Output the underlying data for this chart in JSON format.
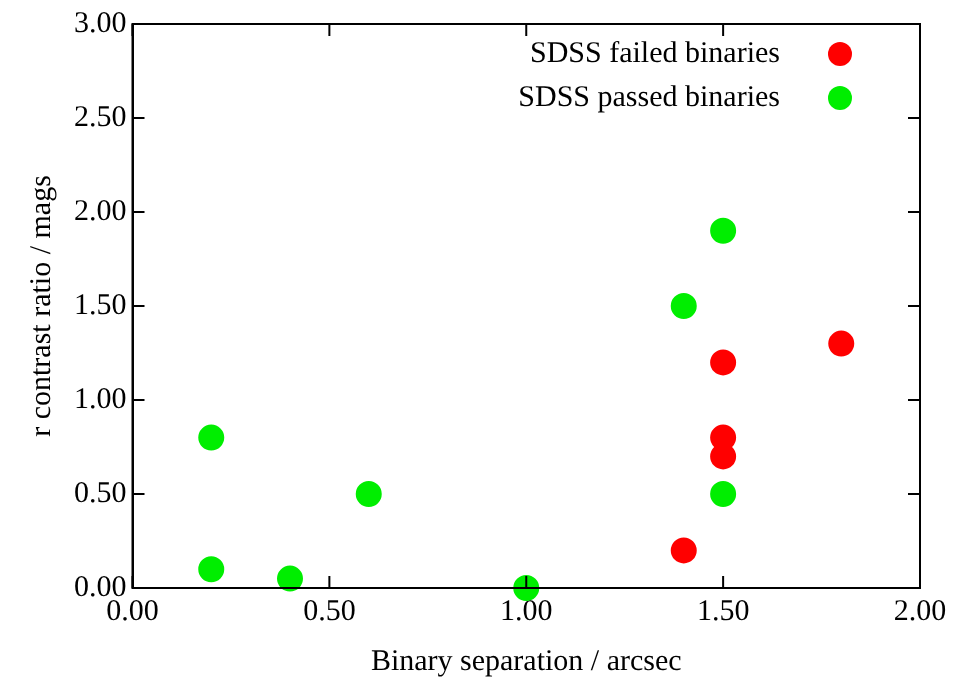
{
  "chart_data": {
    "type": "scatter",
    "xlabel": "Binary separation / arcsec",
    "ylabel": "r contrast ratio / mags",
    "xlim": [
      0,
      2
    ],
    "ylim": [
      0,
      3
    ],
    "xticks": [
      {
        "value": 0,
        "label": "0.00"
      },
      {
        "value": 0.5,
        "label": "0.50"
      },
      {
        "value": 1,
        "label": "1.00"
      },
      {
        "value": 1.5,
        "label": "1.50"
      },
      {
        "value": 2,
        "label": "2.00"
      }
    ],
    "yticks": [
      {
        "value": 0,
        "label": "0.00"
      },
      {
        "value": 0.5,
        "label": "0.50"
      },
      {
        "value": 1,
        "label": "1.00"
      },
      {
        "value": 1.5,
        "label": "1.50"
      },
      {
        "value": 2,
        "label": "2.00"
      },
      {
        "value": 2.5,
        "label": "2.50"
      },
      {
        "value": 3,
        "label": "3.00"
      }
    ],
    "grid": false,
    "legend": "top right",
    "marker": "circle",
    "series": [
      {
        "name": "SDSS failed binaries",
        "color": "#ff0000",
        "x": [
          1.4,
          1.5,
          1.5,
          1.5,
          1.8
        ],
        "values": [
          0.2,
          0.7,
          0.8,
          1.2,
          1.3
        ]
      },
      {
        "name": "SDSS passed binaries",
        "color": "#00ee00",
        "x": [
          0.2,
          0.2,
          0.4,
          0.6,
          1.0,
          1.4,
          1.5,
          1.5
        ],
        "values": [
          0.8,
          0.1,
          0.05,
          0.5,
          0,
          1.5,
          1.9,
          0.5
        ]
      }
    ]
  }
}
